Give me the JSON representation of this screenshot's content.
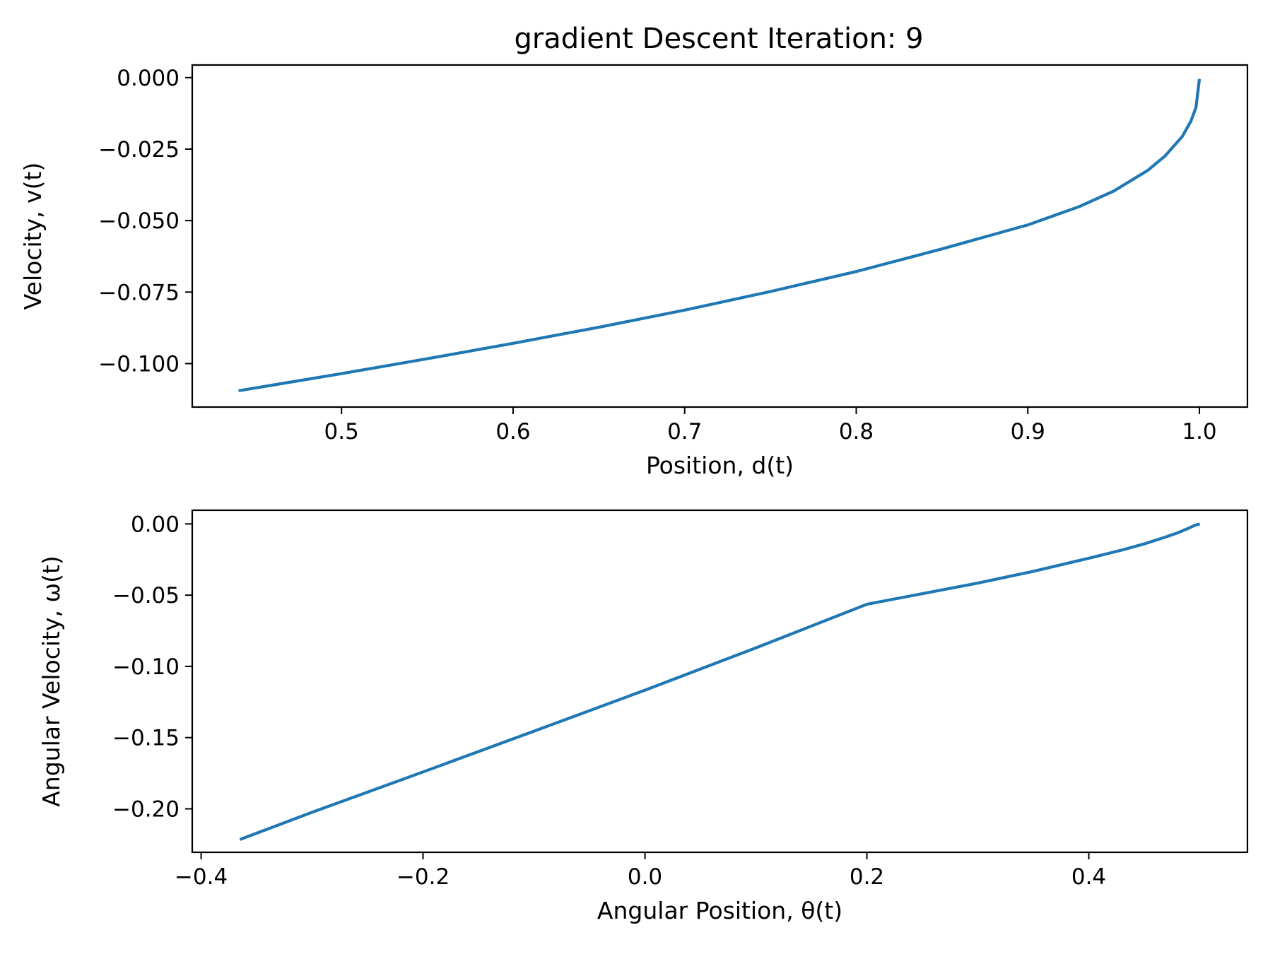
{
  "figure": {
    "title": "gradient Descent Iteration: 9"
  },
  "colors": {
    "line": "#1f77b4",
    "background": "#ffffff",
    "axes": "#000000"
  },
  "chart_data": [
    {
      "type": "line",
      "xlabel": "Position, d(t)",
      "ylabel": "Velocity, v(t)",
      "xlim": [
        0.413,
        1.028
      ],
      "ylim": [
        -0.1152,
        0.0044
      ],
      "xticks": [
        0.5,
        0.6,
        0.7,
        0.8,
        0.9,
        1.0
      ],
      "xtick_labels": [
        "0.5",
        "0.6",
        "0.7",
        "0.8",
        "0.9",
        "1.0"
      ],
      "yticks": [
        0.0,
        -0.025,
        -0.05,
        -0.075,
        -0.1
      ],
      "ytick_labels": [
        "0.000",
        "−0.025",
        "−0.050",
        "−0.075",
        "−0.100"
      ],
      "grid": false,
      "series": [
        {
          "x": [
            0.44,
            0.5,
            0.55,
            0.6,
            0.65,
            0.7,
            0.75,
            0.8,
            0.85,
            0.9,
            0.93,
            0.95,
            0.97,
            0.98,
            0.99,
            0.995,
            0.998,
            1.0
          ],
          "y": [
            -0.1095,
            -0.1035,
            -0.0983,
            -0.0929,
            -0.0873,
            -0.0813,
            -0.0748,
            -0.0678,
            -0.0599,
            -0.0515,
            -0.0451,
            -0.0397,
            -0.0324,
            -0.0274,
            -0.0206,
            -0.0153,
            -0.0104,
            -0.0005
          ]
        }
      ]
    },
    {
      "type": "line",
      "xlabel": "Angular Position, θ(t)",
      "ylabel": "Angular Velocity, ω(t)",
      "xlim": [
        -0.408,
        0.543
      ],
      "ylim": [
        -0.2305,
        0.0096
      ],
      "xticks": [
        -0.4,
        -0.2,
        0.0,
        0.2,
        0.4
      ],
      "xtick_labels": [
        "−0.4",
        "−0.2",
        "0.0",
        "0.2",
        "0.4"
      ],
      "yticks": [
        0.0,
        -0.05,
        -0.1,
        -0.15,
        -0.2
      ],
      "ytick_labels": [
        "0.00",
        "−0.05",
        "−0.10",
        "−0.15",
        "−0.20"
      ],
      "grid": false,
      "series": [
        {
          "x": [
            -0.365,
            -0.3,
            -0.2,
            -0.1,
            0.0,
            0.1,
            0.2,
            0.3,
            0.35,
            0.4,
            0.43,
            0.45,
            0.47,
            0.48,
            0.49,
            0.495,
            0.498,
            0.5
          ],
          "y": [
            -0.2215,
            -0.2024,
            -0.1741,
            -0.1455,
            -0.1167,
            -0.087,
            -0.0564,
            -0.0415,
            -0.0333,
            -0.0241,
            -0.0183,
            -0.014,
            -0.009,
            -0.0063,
            -0.003,
            -0.0012,
            -0.0004,
            0.0
          ]
        }
      ]
    }
  ]
}
